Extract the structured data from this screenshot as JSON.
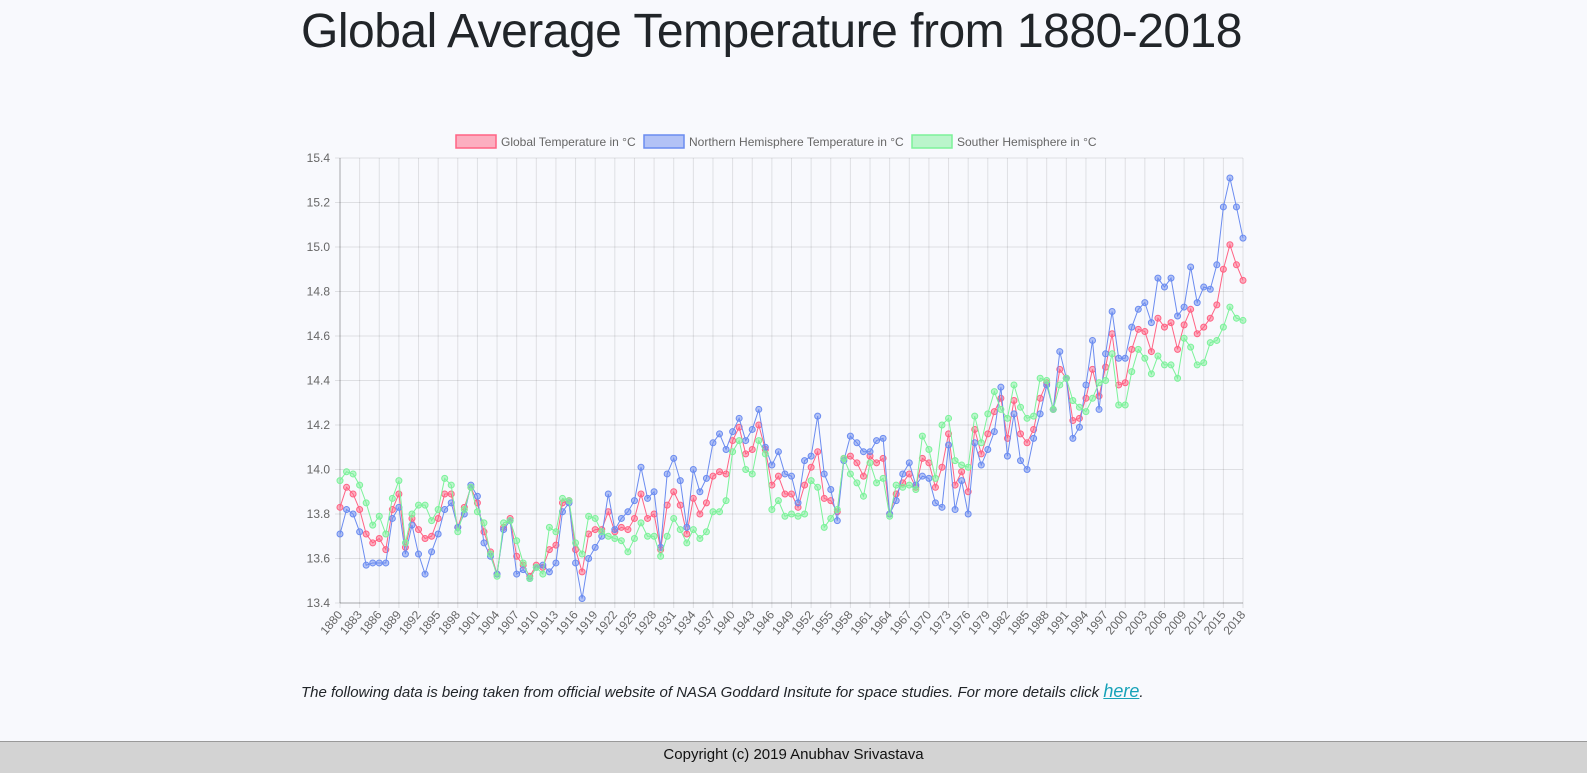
{
  "title": "Global Average Temperature from 1880-2018",
  "note": "The following data is being taken from official website of NASA Goddard Insitute for space studies. For more details click ",
  "link_text": "here",
  "note_end": ".",
  "footer": "Copyright (c) 2019 Anubhav Srivastava",
  "chart_data": {
    "type": "line",
    "categories": [
      "1880",
      null,
      null,
      "1883",
      null,
      null,
      "1886",
      null,
      null,
      "1889",
      null,
      null,
      "1892",
      null,
      null,
      "1895",
      null,
      null,
      "1898",
      null,
      null,
      "1901",
      null,
      null,
      "1904",
      null,
      null,
      "1907",
      null,
      null,
      "1910",
      null,
      null,
      "1913",
      null,
      null,
      "1916",
      null,
      null,
      "1919",
      null,
      null,
      "1922",
      null,
      null,
      "1925",
      null,
      null,
      "1928",
      null,
      null,
      "1931",
      null,
      null,
      "1934",
      null,
      null,
      "1937",
      null,
      null,
      "1940",
      null,
      null,
      "1943",
      null,
      null,
      "1946",
      null,
      null,
      "1949",
      null,
      null,
      "1952",
      null,
      null,
      "1955",
      null,
      null,
      "1958",
      null,
      null,
      "1961",
      null,
      null,
      "1964",
      null,
      null,
      "1967",
      null,
      null,
      "1970",
      null,
      null,
      "1973",
      null,
      null,
      "1976",
      null,
      null,
      "1979",
      null,
      null,
      "1982",
      null,
      null,
      "1985",
      null,
      null,
      "1988",
      null,
      null,
      "1991",
      null,
      null,
      "1994",
      null,
      null,
      "1997",
      null,
      null,
      "2000",
      null,
      null,
      "2003",
      null,
      null,
      "2006",
      null,
      null,
      "2009",
      null,
      null,
      "2012",
      null,
      null,
      "2015",
      null,
      null,
      "2018"
    ],
    "series": [
      {
        "name": "Global Temperature in °C",
        "color": "#ff6384",
        "values": [
          13.83,
          13.92,
          13.89,
          13.82,
          13.71,
          13.67,
          13.69,
          13.64,
          13.82,
          13.89,
          13.65,
          13.78,
          13.73,
          13.69,
          13.7,
          13.78,
          13.89,
          13.89,
          13.74,
          13.83,
          13.92,
          13.85,
          13.72,
          13.63,
          13.53,
          13.74,
          13.78,
          13.61,
          13.57,
          13.52,
          13.57,
          13.56,
          13.64,
          13.66,
          13.85,
          13.86,
          13.64,
          13.54,
          13.71,
          13.73,
          13.73,
          13.81,
          13.72,
          13.74,
          13.73,
          13.78,
          13.89,
          13.78,
          13.8,
          13.64,
          13.84,
          13.9,
          13.84,
          13.71,
          13.87,
          13.8,
          13.85,
          13.97,
          13.99,
          13.98,
          14.13,
          14.19,
          14.07,
          14.09,
          14.2,
          14.09,
          13.93,
          13.97,
          13.89,
          13.89,
          13.83,
          13.93,
          14.01,
          14.08,
          13.87,
          13.86,
          13.81,
          14.05,
          14.06,
          14.03,
          13.97,
          14.06,
          14.03,
          14.05,
          13.8,
          13.89,
          13.94,
          13.98,
          13.92,
          14.05,
          14.03,
          13.92,
          14.01,
          14.16,
          13.93,
          13.99,
          13.9,
          14.18,
          14.07,
          14.16,
          14.26,
          14.32,
          14.14,
          14.31,
          14.16,
          14.12,
          14.18,
          14.32,
          14.39,
          14.27,
          14.45,
          14.41,
          14.22,
          14.23,
          14.32,
          14.45,
          14.33,
          14.46,
          14.61,
          14.38,
          14.39,
          14.54,
          14.63,
          14.62,
          14.53,
          14.68,
          14.64,
          14.66,
          14.54,
          14.65,
          14.72,
          14.61,
          14.64,
          14.68,
          14.74,
          14.9,
          15.01,
          14.92,
          14.85
        ]
      },
      {
        "name": "Northern Hemisphere Temperature in °C",
        "color": "#6b8cf0",
        "values": [
          13.71,
          13.82,
          13.8,
          13.72,
          13.57,
          13.58,
          13.58,
          13.58,
          13.78,
          13.83,
          13.62,
          13.75,
          13.62,
          13.53,
          13.63,
          13.71,
          13.82,
          13.85,
          13.74,
          13.8,
          13.93,
          13.88,
          13.67,
          13.61,
          13.53,
          13.73,
          13.77,
          13.53,
          13.55,
          13.51,
          13.56,
          13.57,
          13.54,
          13.58,
          13.81,
          13.85,
          13.58,
          13.42,
          13.6,
          13.65,
          13.7,
          13.89,
          13.73,
          13.78,
          13.81,
          13.86,
          14.01,
          13.87,
          13.9,
          13.65,
          13.98,
          14.05,
          13.95,
          13.74,
          14.0,
          13.9,
          13.96,
          14.12,
          14.16,
          14.09,
          14.17,
          14.23,
          14.13,
          14.18,
          14.27,
          14.1,
          14.02,
          14.08,
          13.98,
          13.97,
          13.85,
          14.04,
          14.06,
          14.24,
          13.98,
          13.91,
          13.77,
          14.04,
          14.15,
          14.12,
          14.08,
          14.08,
          14.13,
          14.14,
          13.8,
          13.86,
          13.98,
          14.03,
          13.93,
          13.97,
          13.96,
          13.85,
          13.83,
          14.11,
          13.82,
          13.95,
          13.8,
          14.12,
          14.02,
          14.09,
          14.17,
          14.37,
          14.06,
          14.25,
          14.04,
          14.0,
          14.14,
          14.25,
          14.38,
          14.27,
          14.53,
          14.41,
          14.14,
          14.19,
          14.38,
          14.58,
          14.27,
          14.52,
          14.71,
          14.5,
          14.5,
          14.64,
          14.72,
          14.75,
          14.66,
          14.86,
          14.82,
          14.86,
          14.69,
          14.73,
          14.91,
          14.75,
          14.82,
          14.81,
          14.92,
          15.18,
          15.31,
          15.18,
          15.04
        ]
      },
      {
        "name": "Souther Hemisphere in °C",
        "color": "#7cf29a",
        "values": [
          13.95,
          13.99,
          13.98,
          13.93,
          13.85,
          13.75,
          13.79,
          13.71,
          13.87,
          13.95,
          13.67,
          13.8,
          13.84,
          13.84,
          13.77,
          13.82,
          13.96,
          13.93,
          13.72,
          13.82,
          13.92,
          13.81,
          13.76,
          13.62,
          13.52,
          13.76,
          13.77,
          13.68,
          13.58,
          13.51,
          13.56,
          13.53,
          13.74,
          13.72,
          13.87,
          13.86,
          13.67,
          13.62,
          13.79,
          13.78,
          13.72,
          13.7,
          13.69,
          13.68,
          13.63,
          13.69,
          13.76,
          13.7,
          13.7,
          13.61,
          13.7,
          13.78,
          13.73,
          13.67,
          13.73,
          13.69,
          13.72,
          13.81,
          13.81,
          13.86,
          14.08,
          14.13,
          14.0,
          13.98,
          14.13,
          14.07,
          13.82,
          13.86,
          13.79,
          13.8,
          13.79,
          13.8,
          13.95,
          13.92,
          13.74,
          13.78,
          13.82,
          14.05,
          13.98,
          13.94,
          13.88,
          14.03,
          13.94,
          13.96,
          13.79,
          13.93,
          13.92,
          13.93,
          13.91,
          14.15,
          14.09,
          13.96,
          14.2,
          14.23,
          14.04,
          14.02,
          14.01,
          14.24,
          14.12,
          14.25,
          14.35,
          14.27,
          14.23,
          14.38,
          14.28,
          14.23,
          14.24,
          14.41,
          14.4,
          14.27,
          14.38,
          14.41,
          14.31,
          14.28,
          14.26,
          14.32,
          14.39,
          14.4,
          14.52,
          14.29,
          14.29,
          14.44,
          14.54,
          14.5,
          14.43,
          14.51,
          14.47,
          14.47,
          14.41,
          14.59,
          14.55,
          14.47,
          14.48,
          14.57,
          14.58,
          14.64,
          14.73,
          14.68,
          14.67
        ]
      }
    ],
    "ylim": [
      13.4,
      15.4
    ],
    "yticks": [
      13.4,
      13.6,
      13.8,
      {
        "value": 14,
        "label": "14.0"
      },
      14.2,
      14.4,
      14.6,
      14.8,
      {
        "value": 15,
        "label": "15.0"
      },
      15.2,
      15.4
    ],
    "grid": true,
    "legend": "top"
  }
}
